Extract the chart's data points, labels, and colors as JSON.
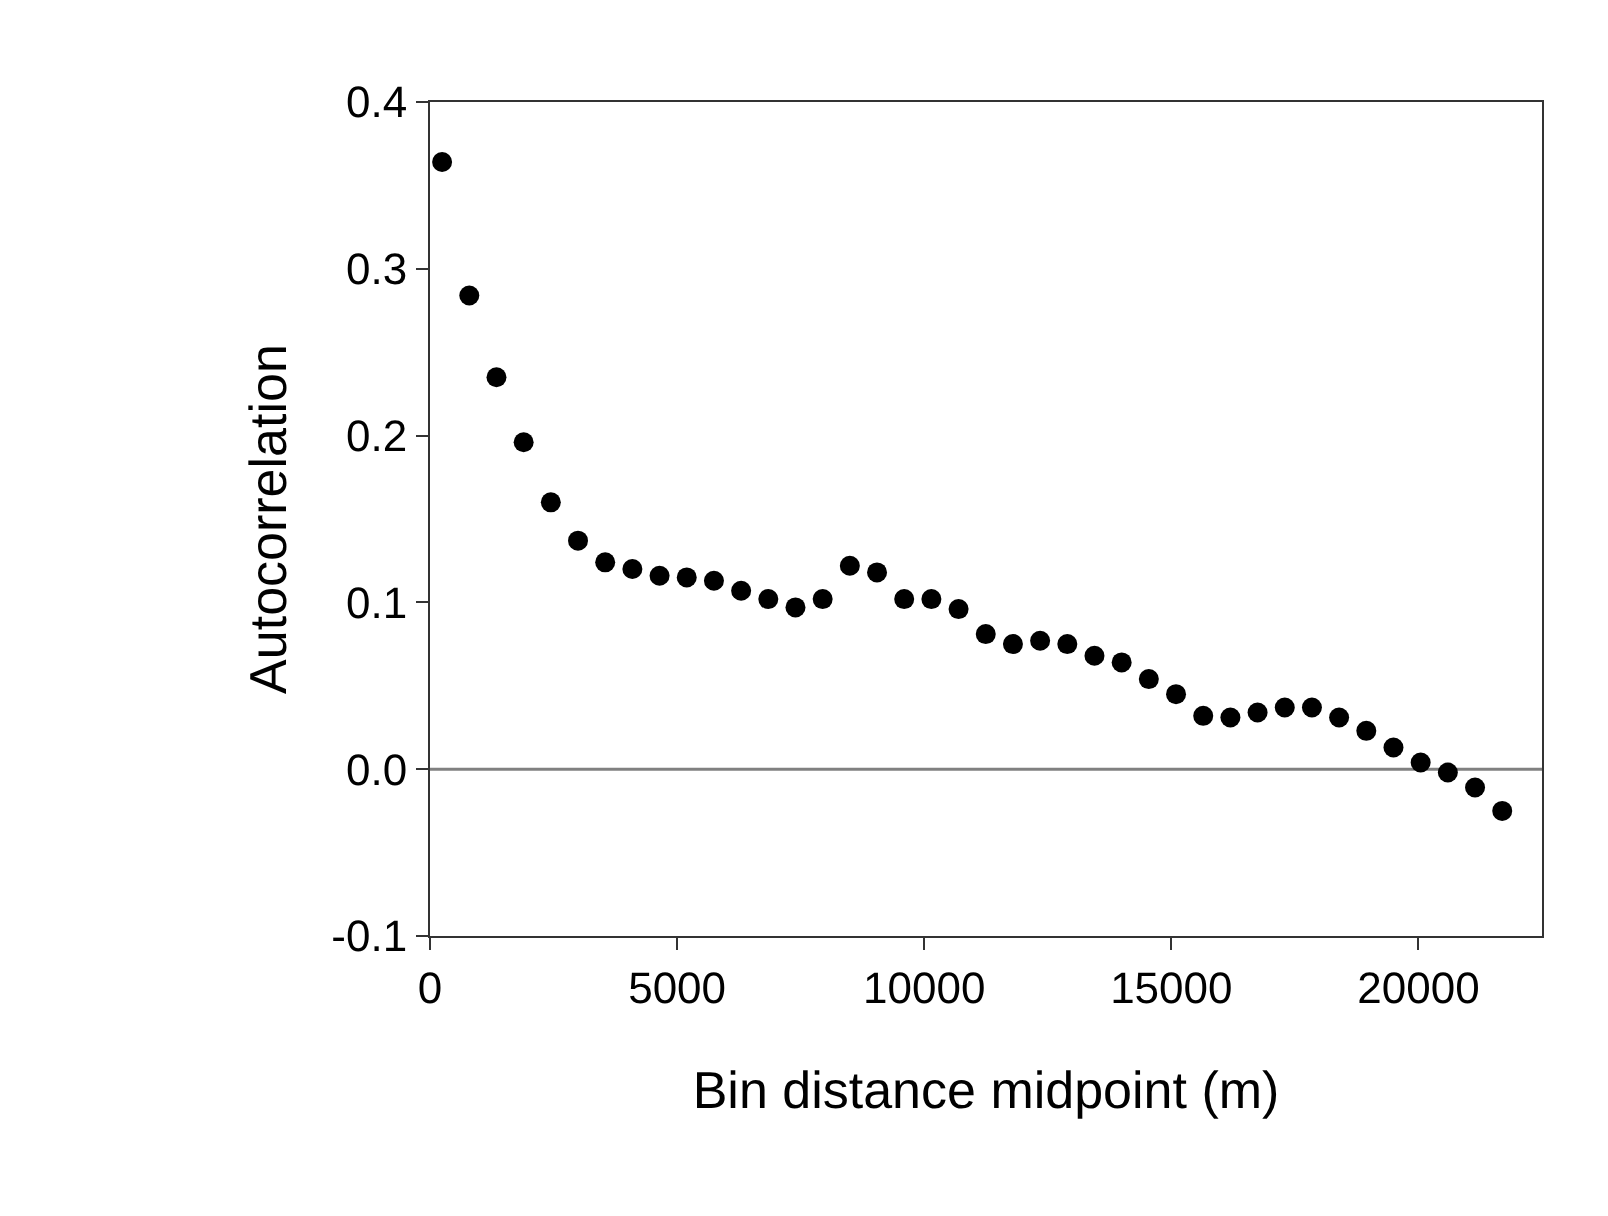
{
  "chart_data": {
    "type": "scatter",
    "xlabel": "Bin distance midpoint (m)",
    "ylabel": "Autocorrelation",
    "x": [
      245,
      795,
      1345,
      1895,
      2445,
      2995,
      3545,
      4095,
      4645,
      5195,
      5745,
      6295,
      6845,
      7395,
      7945,
      8495,
      9045,
      9595,
      10145,
      10695,
      11245,
      11795,
      12345,
      12895,
      13445,
      13995,
      14545,
      15095,
      15645,
      16195,
      16745,
      17295,
      17845,
      18395,
      18945,
      19495,
      20045,
      20595,
      21145,
      21695
    ],
    "values": [
      0.364,
      0.284,
      0.235,
      0.196,
      0.16,
      0.137,
      0.124,
      0.12,
      0.116,
      0.115,
      0.113,
      0.107,
      0.102,
      0.097,
      0.102,
      0.122,
      0.118,
      0.102,
      0.102,
      0.096,
      0.081,
      0.075,
      0.077,
      0.075,
      0.068,
      0.064,
      0.054,
      0.045,
      0.032,
      0.031,
      0.034,
      0.037,
      0.037,
      0.031,
      0.023,
      0.013,
      0.004,
      -0.002,
      -0.011,
      -0.025
    ],
    "color": "#000000",
    "marker": "circle",
    "grid": false,
    "xlim": [
      0,
      22500
    ],
    "xticks": [
      0,
      5000,
      10000,
      15000,
      20000
    ],
    "ylim": [
      -0.1,
      0.4
    ],
    "yticks": [
      {
        "value": -0.1,
        "label": "-0.1"
      },
      {
        "value": 0,
        "label": "0.0"
      },
      {
        "value": 0.1,
        "label": "0.1"
      },
      {
        "value": 0.2,
        "label": "0.2"
      },
      {
        "value": 0.3,
        "label": "0.3"
      },
      {
        "value": 0.4,
        "label": "0.4"
      }
    ],
    "ref_lines": [
      {
        "axis": "y",
        "value": 0,
        "color": "#808080"
      }
    ]
  }
}
